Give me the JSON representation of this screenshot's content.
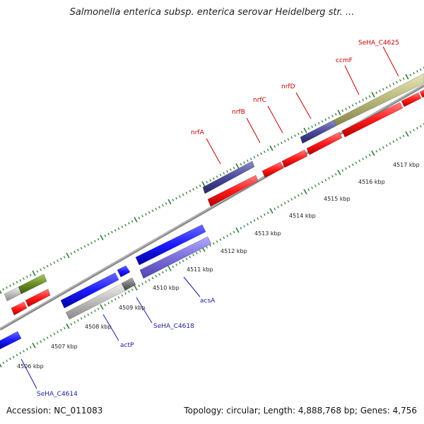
{
  "title": "Salmonella enterica subsp. enterica serovar Heidelberg str. ...",
  "footer": {
    "accession": "Accession: NC_011083",
    "topology": "Topology: circular; Length: 4,888,768 bp; Genes: 4,756"
  },
  "colors": {
    "background": "#ffffff",
    "backbone": "#8a8a8a",
    "tick_mark": "#2e7d32",
    "label_forward": "#c00000",
    "label_reverse": "#1a1aa0",
    "feature_red": "#ff1a1a",
    "feature_blue": "#1a1aff",
    "feature_lavender": "#7b6fdc",
    "feature_navy": "#4a4a9a",
    "feature_olive": "#b8b87a",
    "feature_green": "#6b8e23",
    "feature_gray": "#bdbdbd"
  },
  "tick_labels": [
    "4506 kbp",
    "4507 kbp",
    "4508 kbp",
    "4509 kbp",
    "4510 kbp",
    "4511 kbp",
    "4512 kbp",
    "4513 kbp",
    "4514 kbp",
    "4515 kbp",
    "4516 kbp",
    "4517 kbp"
  ],
  "gene_labels": {
    "forward": [
      "nrfA",
      "nrfB",
      "nrfC",
      "nrfD",
      "ccmF",
      "SeHA_C4625"
    ],
    "reverse": [
      "acsA",
      "SeHA_C4618",
      "actP",
      "SeHA_C4614"
    ]
  }
}
